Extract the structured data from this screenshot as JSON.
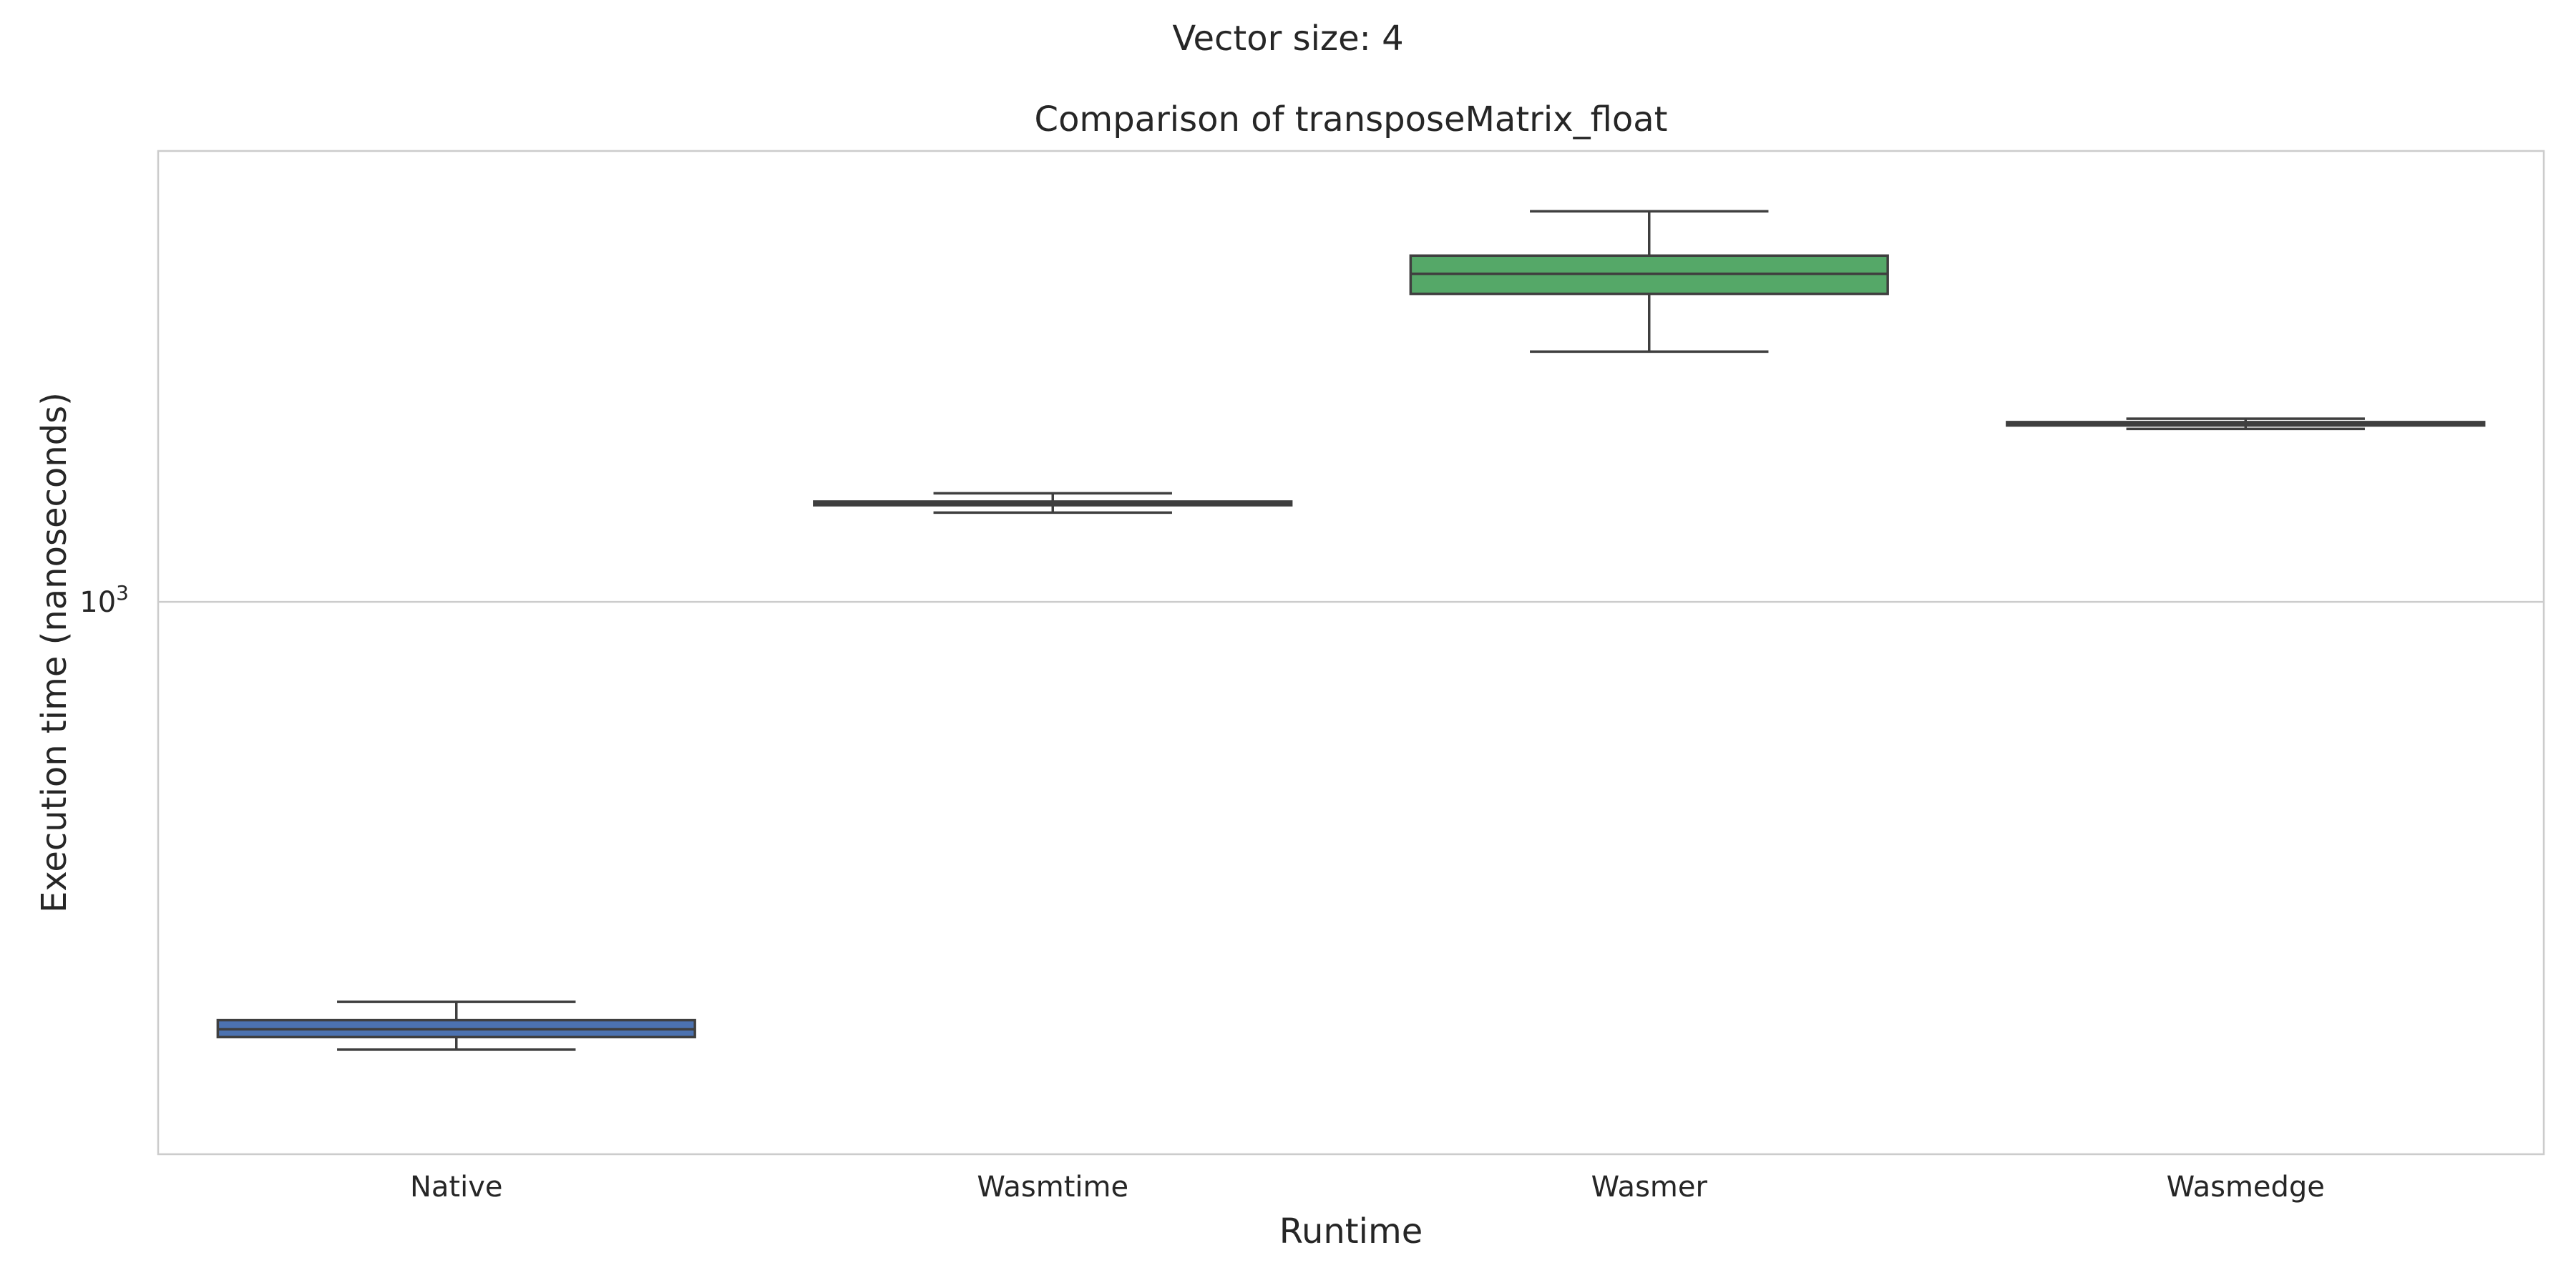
{
  "suptitle": "Vector size: 4",
  "chart_data": {
    "type": "box",
    "title": "Comparison of transposeMatrix_float",
    "xlabel": "Runtime",
    "ylabel": "Execution time (nanoseconds)",
    "yscale": "log",
    "ylim": [
      580,
      1560
    ],
    "yticks": [
      {
        "value": 1000,
        "base": "10",
        "exponent": "3"
      }
    ],
    "grid": true,
    "categories": [
      "Native",
      "Wasmtime",
      "Wasmer",
      "Wasmedge"
    ],
    "boxes": [
      {
        "category": "Native",
        "whislo": 643,
        "q1": 651,
        "med": 656,
        "q3": 662,
        "whishi": 674,
        "color": "#4C72B0"
      },
      {
        "category": "Wasmtime",
        "whislo": 1092,
        "q1": 1100,
        "med": 1102,
        "q3": 1104,
        "whishi": 1113,
        "color": "#DD8452"
      },
      {
        "category": "Wasmer",
        "whislo": 1280,
        "q1": 1355,
        "med": 1382,
        "q3": 1407,
        "whishi": 1470,
        "color": "#55A868"
      },
      {
        "category": "Wasmedge",
        "whislo": 1186,
        "q1": 1190,
        "med": 1192,
        "q3": 1194,
        "whishi": 1198,
        "color": "#C44E52"
      }
    ]
  }
}
